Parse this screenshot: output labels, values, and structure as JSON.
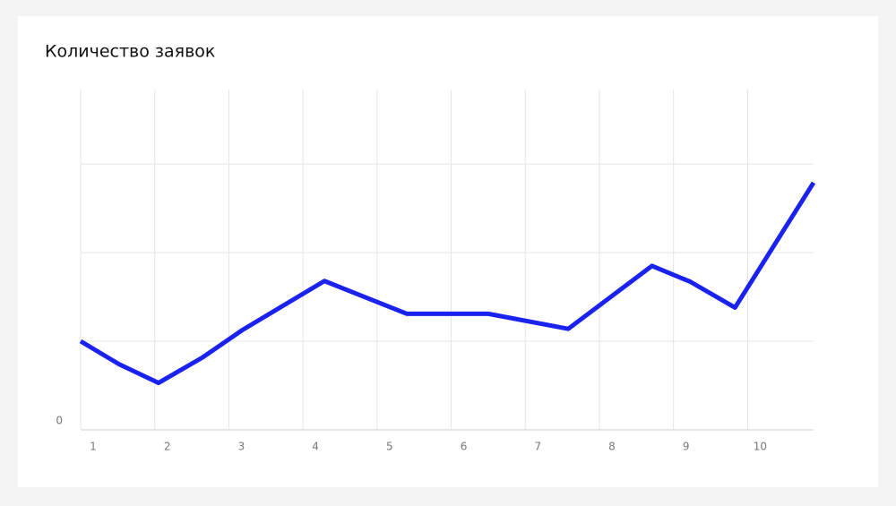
{
  "chart_data": {
    "type": "line",
    "title": "Количество заявок",
    "x": [
      1,
      1.52,
      2.05,
      2.65,
      3.17,
      4.29,
      5.4,
      6.5,
      7.58,
      8.71,
      9.23,
      9.83,
      10.89
    ],
    "series": [
      {
        "color": "#1a22f0",
        "values": [
          1.0,
          0.74,
          0.53,
          0.82,
          1.12,
          1.68,
          1.31,
          1.31,
          1.14,
          1.85,
          1.67,
          1.38,
          2.79
        ]
      }
    ],
    "xlim": [
      1,
      10.89
    ],
    "xticks": [
      1,
      2,
      3,
      4,
      5,
      6,
      7,
      8,
      9,
      10
    ],
    "ylim": [
      0,
      3.84
    ],
    "yticks": [
      0,
      {
        "value": 1,
        "label": null
      },
      {
        "value": 2,
        "label": null
      },
      {
        "value": 3,
        "label": null
      }
    ],
    "grid": true
  }
}
